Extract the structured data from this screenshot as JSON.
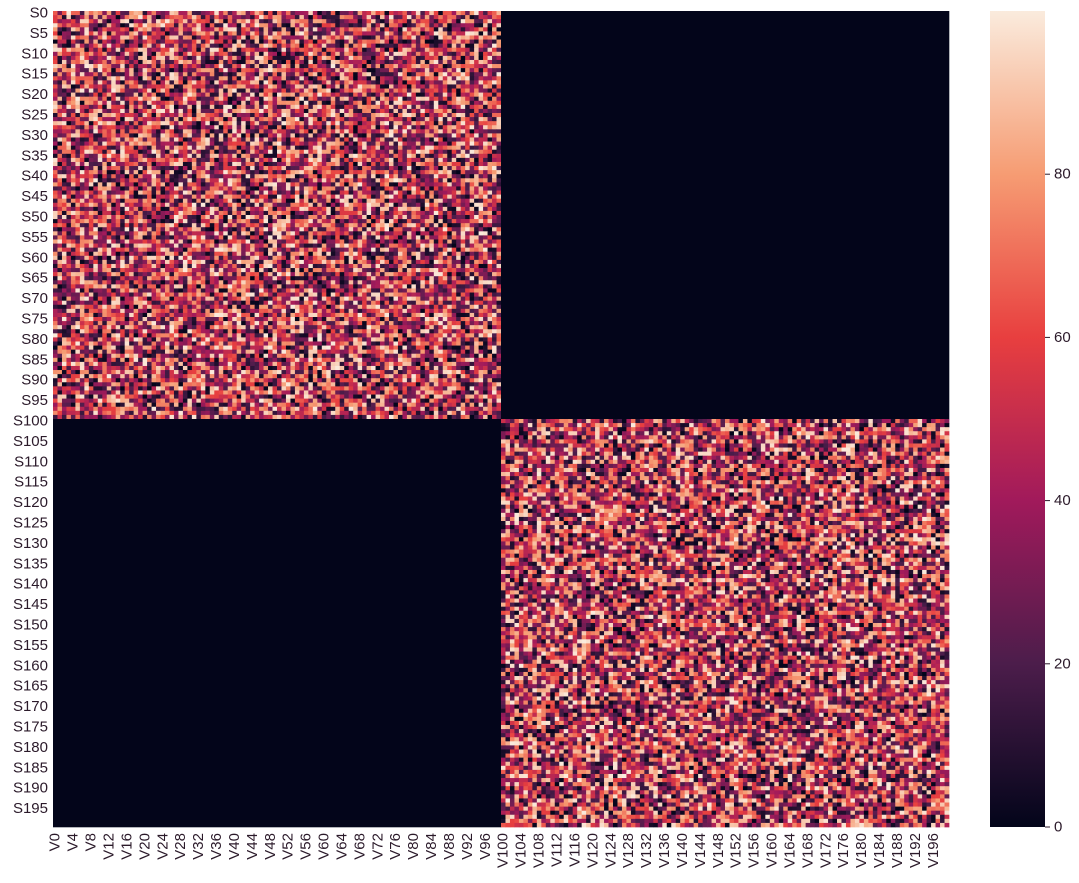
{
  "chart_data": {
    "type": "heatmap",
    "title": "",
    "xlabel": "",
    "ylabel": "",
    "n_rows": 200,
    "n_cols": 200,
    "row_tick_labels": [
      "S0",
      "S5",
      "S10",
      "S15",
      "S20",
      "S25",
      "S30",
      "S35",
      "S40",
      "S45",
      "S50",
      "S55",
      "S60",
      "S65",
      "S70",
      "S75",
      "S80",
      "S85",
      "S90",
      "S95",
      "S100",
      "S105",
      "S110",
      "S115",
      "S120",
      "S125",
      "S130",
      "S135",
      "S140",
      "S145",
      "S150",
      "S155",
      "S160",
      "S165",
      "S170",
      "S175",
      "S180",
      "S185",
      "S190",
      "S195"
    ],
    "col_tick_labels": [
      "V0",
      "V4",
      "V8",
      "V12",
      "V16",
      "V20",
      "V24",
      "V28",
      "V32",
      "V36",
      "V40",
      "V44",
      "V48",
      "V52",
      "V56",
      "V60",
      "V64",
      "V68",
      "V72",
      "V76",
      "V80",
      "V84",
      "V88",
      "V92",
      "V96",
      "V100",
      "V104",
      "V108",
      "V112",
      "V116",
      "V120",
      "V124",
      "V128",
      "V132",
      "V136",
      "V140",
      "V144",
      "V148",
      "V152",
      "V156",
      "V160",
      "V164",
      "V168",
      "V172",
      "V176",
      "V180",
      "V184",
      "V188",
      "V192",
      "V196"
    ],
    "blocks": [
      {
        "rows": [
          0,
          99
        ],
        "cols": [
          0,
          99
        ],
        "value_range": [
          0,
          100
        ],
        "pattern": "random noise"
      },
      {
        "rows": [
          0,
          99
        ],
        "cols": [
          100,
          199
        ],
        "value": 0
      },
      {
        "rows": [
          100,
          199
        ],
        "cols": [
          0,
          99
        ],
        "value": 0
      },
      {
        "rows": [
          100,
          199
        ],
        "cols": [
          100,
          199
        ],
        "value_range": [
          0,
          100
        ],
        "pattern": "random noise"
      }
    ],
    "colorbar": {
      "min": 0,
      "max": 100,
      "ticks": [
        0,
        20,
        40,
        60,
        80
      ],
      "tick_labels": [
        "0",
        "20",
        "40",
        "60",
        "80"
      ],
      "colormap": "rocket",
      "color_stops": [
        "#03051a",
        "#4c1d4b",
        "#a11a5b",
        "#e83f3f",
        "#f69c73",
        "#faebdd"
      ]
    },
    "grid": false,
    "legend": "colorbar-right"
  }
}
